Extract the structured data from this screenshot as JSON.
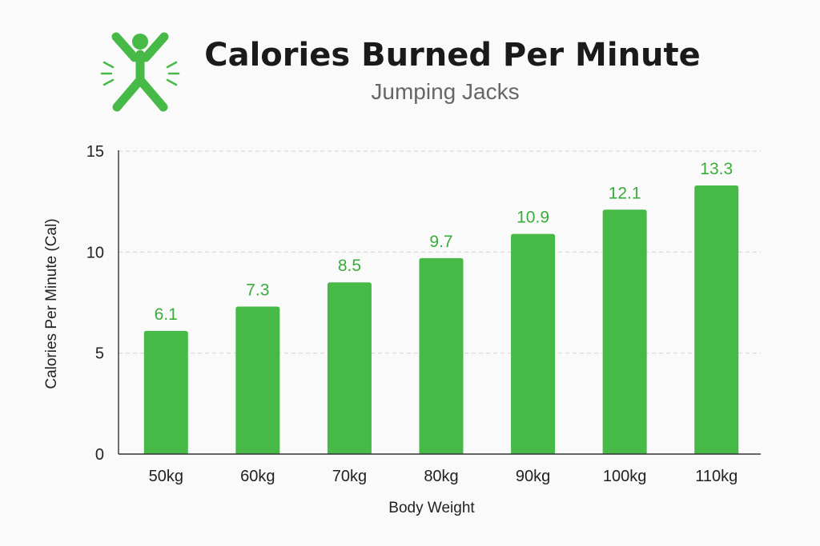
{
  "header": {
    "title": "Calories Burned Per Minute",
    "subtitle": "Jumping Jacks",
    "icon": "jumping-person-icon"
  },
  "colors": {
    "bar": "#46b947",
    "accent": "#46b947",
    "label": "#3aac3c",
    "grid": "#d9d9d9",
    "axis": "#333333"
  },
  "chart_data": {
    "type": "bar",
    "title": "Calories Burned Per Minute",
    "subtitle": "Jumping Jacks",
    "xlabel": "Body Weight",
    "ylabel": "Calories Per Minute (Cal)",
    "categories": [
      "50kg",
      "60kg",
      "70kg",
      "80kg",
      "90kg",
      "100kg",
      "110kg"
    ],
    "values": [
      6.1,
      7.3,
      8.5,
      9.7,
      10.9,
      12.1,
      13.3
    ],
    "data_labels": [
      "6.1",
      "7.3",
      "8.5",
      "9.7",
      "10.9",
      "12.1",
      "13.3"
    ],
    "ylim": [
      0,
      15
    ],
    "yticks": [
      0,
      5,
      10,
      15
    ],
    "ytick_labels": [
      "0",
      "5",
      "10",
      "15"
    ],
    "grid": true,
    "legend": "none"
  }
}
